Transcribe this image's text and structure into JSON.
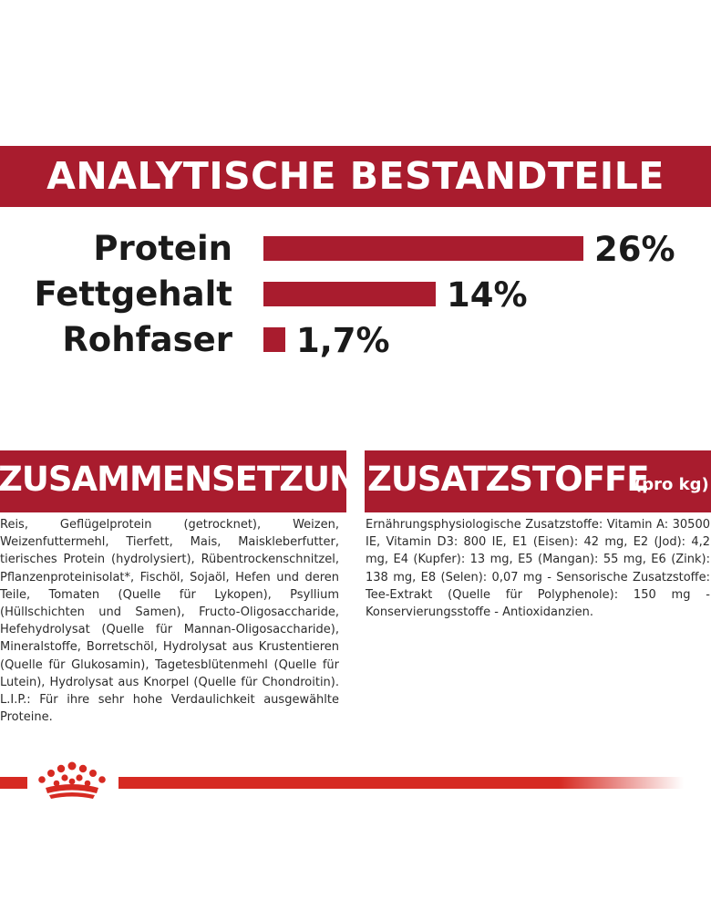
{
  "header": {
    "title": "ANALYTISCHE BESTANDTEILE"
  },
  "chart_data": {
    "type": "bar",
    "orientation": "horizontal",
    "categories": [
      "Protein",
      "Fettgehalt",
      "Rohfaser"
    ],
    "values": [
      26,
      14,
      1.7
    ],
    "value_labels": [
      "26%",
      "14%",
      "1,7%"
    ],
    "unit": "%",
    "title": "ANALYTISCHE BESTANDTEILE",
    "xlim": [
      0,
      26
    ],
    "grid": false,
    "legend": "none",
    "bar_color": "#a91c2e"
  },
  "composition": {
    "heading": "ZUSAMMENSETZUNG",
    "text": "Reis, Geflügelprotein (getrocknet), Weizen, Weizenfuttermehl, Tierfett, Mais, Maiskleberfutter, tierisches Protein (hydrolysiert), Rübentrockenschnitzel, Pflanzenproteinisolat*, Fischöl, Sojaöl, Hefen und deren Teile, Tomaten (Quelle für Lykopen), Psyllium (Hüllschichten und Samen), Fructo-Oligosaccharide, Hefehydrolysat (Quelle für Mannan-Oligosaccharide), Mineralstoffe, Borretschöl, Hydrolysat aus Krustentieren (Quelle für Glukosamin), Tagetesblütenmehl (Quelle für Lutein), Hydrolysat aus Knorpel (Quelle für Chondroitin). L.I.P.: Für ihre sehr hohe Verdaulichkeit ausgewählte Proteine."
  },
  "additives": {
    "heading": "ZUSATZSTOFFE",
    "heading_sub": "(pro kg)",
    "text": "Ernährungsphysiologische Zusatzstoffe: Vitamin A: 30500 IE, Vitamin D3: 800 IE, E1 (Eisen): 42 mg, E2 (Jod): 4,2 mg, E4 (Kupfer): 13 mg, E5 (Mangan): 55 mg, E6 (Zink): 138 mg, E8 (Selen): 0,07 mg - Sensorische Zusatzstoffe: Tee-Extrakt (Quelle für Polyphenole): 150 mg - Konservierungsstoffe - Antioxidanzien."
  },
  "footer": {
    "logo_icon": "crown-icon",
    "line_color": "#d62a22"
  }
}
